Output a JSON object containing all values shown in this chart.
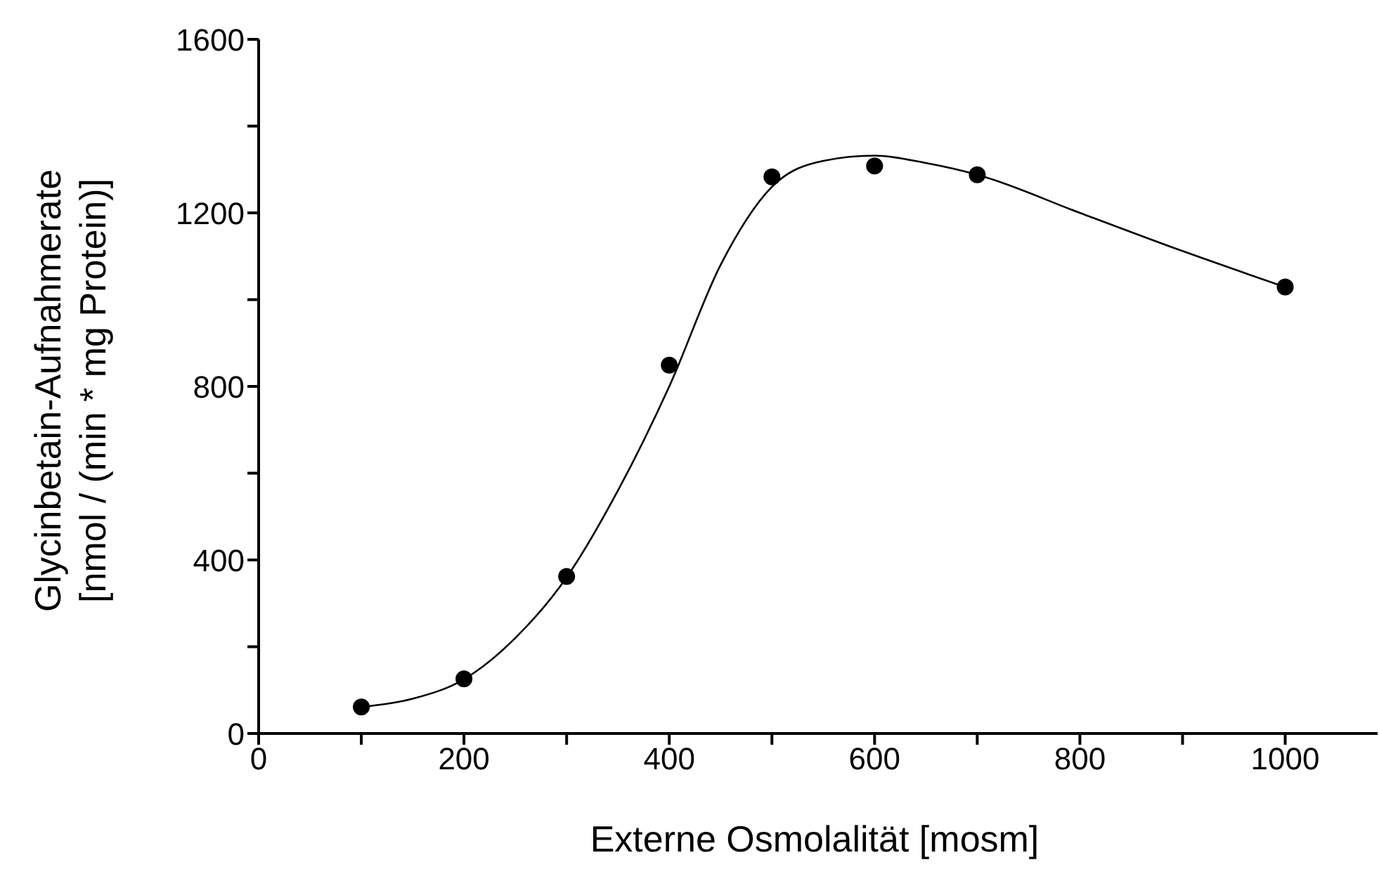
{
  "chart_data": {
    "type": "scatter",
    "xlabel": "Externe Osmolalität [mosm]",
    "ylabel": "Glycinbetain-Aufnahmerate\n[nmol / (min * mg Protein)]",
    "xlim": [
      0,
      1090
    ],
    "xticks": [
      0,
      {
        "value": 100,
        "label": null
      },
      200,
      {
        "value": 300,
        "label": null
      },
      400,
      {
        "value": 500,
        "label": null
      },
      600,
      {
        "value": 700,
        "label": null
      },
      800,
      {
        "value": 900,
        "label": null
      },
      1000
    ],
    "ylim": [
      0,
      1600
    ],
    "yticks": [
      0,
      {
        "value": 200,
        "label": null
      },
      400,
      {
        "value": 600,
        "label": null
      },
      800,
      {
        "value": 1000,
        "label": null
      },
      1200,
      {
        "value": 1400,
        "label": null
      },
      1600
    ],
    "grid": false,
    "legend": false,
    "series": [
      {
        "marker": "circle",
        "color": "#000000",
        "x": [
          100,
          200,
          300,
          400,
          500,
          600,
          700,
          1000
        ],
        "values": [
          61,
          126,
          362,
          849,
          1283,
          1308,
          1288,
          1029
        ]
      },
      {
        "type": "line",
        "marker": "none",
        "line_style": "solid",
        "color": "#000000",
        "x": [
          100,
          150,
          200,
          250,
          300,
          350,
          400,
          450,
          500,
          550,
          600,
          650,
          700,
          800,
          900,
          1000
        ],
        "values": [
          61,
          80,
          125,
          220,
          360,
          560,
          800,
          1080,
          1260,
          1320,
          1332,
          1315,
          1288,
          1200,
          1112,
          1029
        ]
      }
    ]
  }
}
